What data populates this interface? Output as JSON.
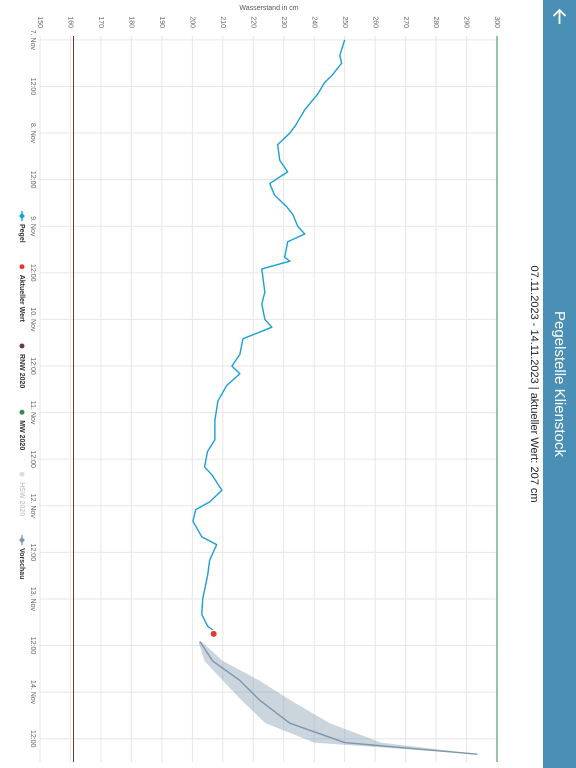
{
  "chart_data": {
    "type": "line",
    "title": "Pegelstelle Klienstock",
    "subtitle": "07.11.2023 - 14.11.2023 | aktueller Wert: 207 cm",
    "y_label": "Wasserstand in cm",
    "ylim": [
      150,
      300
    ],
    "yticks": [
      150,
      160,
      170,
      180,
      190,
      200,
      210,
      220,
      230,
      240,
      250,
      260,
      270,
      280,
      290,
      300
    ],
    "xlim": [
      "2023-11-06T23:00",
      "2023-11-14T18:00"
    ],
    "xticks": [
      {
        "value": "2023-11-07T00:00",
        "label": "7. Nov"
      },
      {
        "value": "2023-11-07T12:00",
        "label": "12:00"
      },
      {
        "value": "2023-11-08T00:00",
        "label": "8. Nov"
      },
      {
        "value": "2023-11-08T12:00",
        "label": "12:00"
      },
      {
        "value": "2023-11-09T00:00",
        "label": "9. Nov"
      },
      {
        "value": "2023-11-09T12:00",
        "label": "12:00"
      },
      {
        "value": "2023-11-10T00:00",
        "label": "10. Nov"
      },
      {
        "value": "2023-11-10T12:00",
        "label": "12:00"
      },
      {
        "value": "2023-11-11T00:00",
        "label": "11. Nov"
      },
      {
        "value": "2023-11-11T12:00",
        "label": "12:00"
      },
      {
        "value": "2023-11-12T00:00",
        "label": "12. Nov"
      },
      {
        "value": "2023-11-12T12:00",
        "label": "12:00"
      },
      {
        "value": "2023-11-13T00:00",
        "label": "13. Nov"
      },
      {
        "value": "2023-11-13T12:00",
        "label": "12:00"
      },
      {
        "value": "2023-11-14T00:00",
        "label": "14. Nov"
      },
      {
        "value": "2023-11-14T12:00",
        "label": "12:00"
      }
    ],
    "grid": true,
    "series": [
      {
        "name": "Pegel",
        "color": "#1a9fd6",
        "x": [
          "2023-11-07T00:00",
          "2023-11-07T04:00",
          "2023-11-07T06:00",
          "2023-11-07T09:00",
          "2023-11-07T11:00",
          "2023-11-07T14:00",
          "2023-11-07T18:00",
          "2023-11-07T22:00",
          "2023-11-08T00:00",
          "2023-11-08T03:00",
          "2023-11-08T07:00",
          "2023-11-08T10:00",
          "2023-11-08T11:00",
          "2023-11-08T13:00",
          "2023-11-08T16:00",
          "2023-11-08T19:00",
          "2023-11-08T21:00",
          "2023-11-09T00:00",
          "2023-11-09T02:00",
          "2023-11-09T04:00",
          "2023-11-09T08:00",
          "2023-11-09T09:00",
          "2023-11-09T11:00",
          "2023-11-09T17:00",
          "2023-11-09T20:00",
          "2023-11-10T00:00",
          "2023-11-10T02:00",
          "2023-11-10T05:00",
          "2023-11-10T09:00",
          "2023-11-10T12:00",
          "2023-11-10T14:00",
          "2023-11-10T17:00",
          "2023-11-10T21:00",
          "2023-11-11T02:00",
          "2023-11-11T07:00",
          "2023-11-11T10:00",
          "2023-11-11T14:00",
          "2023-11-11T16:00",
          "2023-11-11T20:00",
          "2023-11-11T23:00",
          "2023-11-12T01:00",
          "2023-11-12T04:00",
          "2023-11-12T08:00",
          "2023-11-12T10:00",
          "2023-11-12T14:00",
          "2023-11-12T18:00",
          "2023-11-13T00:00",
          "2023-11-13T04:00",
          "2023-11-13T07:00",
          "2023-11-13T08:00"
        ],
        "values": [
          250,
          248.4,
          249,
          246,
          243.4,
          241.1,
          236.9,
          233.9,
          232,
          228,
          228.7,
          231.3,
          229.3,
          225.4,
          227,
          231,
          233,
          234.6,
          236.9,
          231.3,
          230.3,
          232,
          222.8,
          223.8,
          222.8,
          223.8,
          226.1,
          216.6,
          215.6,
          213,
          215.6,
          211.3,
          208.4,
          207.4,
          207.4,
          205,
          204,
          206.4,
          209.7,
          205.7,
          201.1,
          200.2,
          203.1,
          208,
          205.7,
          205,
          203.4,
          203.1,
          205,
          206.7
        ]
      },
      {
        "name": "Aktueller Wert",
        "color": "#e53935",
        "x": [
          "2023-11-13T09:00"
        ],
        "values": [
          207
        ]
      },
      {
        "name": "RNW 2020",
        "color": "#6b3a3a",
        "value": 161
      },
      {
        "name": "MW 2020",
        "color": "#2e8b57",
        "value": 300
      },
      {
        "name": "HSW 2020",
        "color": "#cccccc",
        "hidden": true
      },
      {
        "name": "Vorschau",
        "color": "#7d96ab",
        "x": [
          "2023-11-13T11:00",
          "2023-11-13T16:00",
          "2023-11-13T21:00",
          "2023-11-14T02:00",
          "2023-11-14T08:00",
          "2023-11-14T13:00",
          "2023-11-14T16:00"
        ],
        "values": [
          202.5,
          206.7,
          215.6,
          222,
          232,
          250,
          293.6
        ],
        "lower": [
          202,
          204,
          210,
          216,
          224,
          240,
          293
        ],
        "upper": [
          203,
          210,
          222,
          232,
          245,
          262,
          294
        ]
      }
    ]
  }
}
